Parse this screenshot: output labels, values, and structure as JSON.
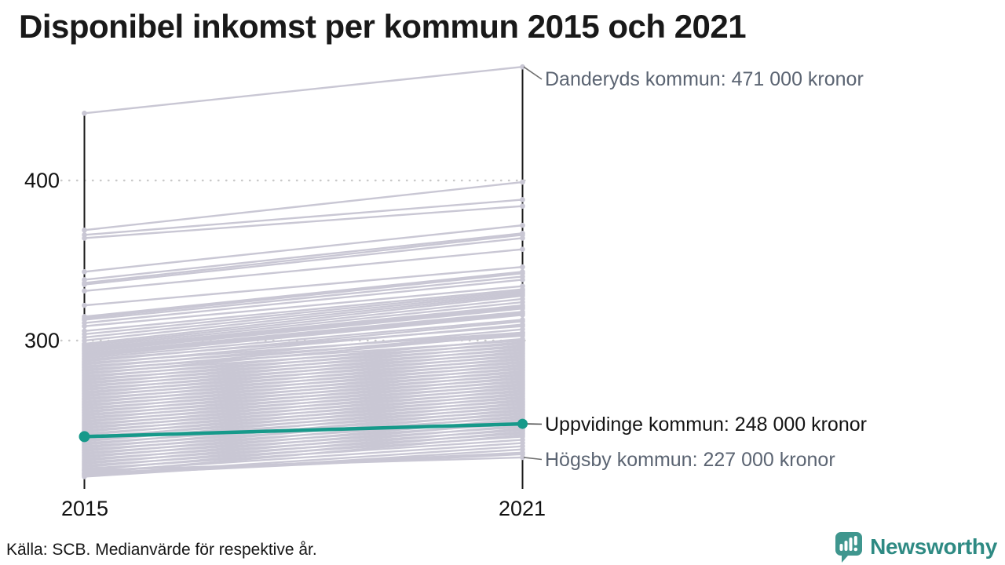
{
  "title": "Disponibel inkomst per kommun 2015 och 2021",
  "source": "Källa: SCB. Medianvärde för respektive år.",
  "brand": {
    "name": "Newsworthy",
    "icon": "newsworthy-speech-bubble-bar-chart-icon",
    "text_color": "#2e8a83",
    "icon_color": "#3f968e"
  },
  "colors": {
    "highlight": "#16998a",
    "background_line": "#c9c7d4",
    "axis": "#1a1a1a",
    "grid": "#c9c9c9",
    "annotation_gray": "#5b6472",
    "annotation_dark": "#141414"
  },
  "chart_data": {
    "type": "line",
    "subtype": "slopegraph",
    "title": "Disponibel inkomst per kommun 2015 och 2021",
    "x": [
      2015,
      2021
    ],
    "x_labels": [
      "2015",
      "2021"
    ],
    "y_ticks": [
      300,
      400
    ],
    "ylim": [
      210,
      480
    ],
    "unit": "tusen kronor",
    "grid": "dotted horizontal at y ticks",
    "annotations": [
      {
        "text": "Danderyds kommun: 471 000 kronor",
        "value_2021": 471,
        "style": "gray"
      },
      {
        "text": "Uppvidinge kommun: 248 000 kronor",
        "value_2021": 248,
        "style": "dark"
      },
      {
        "text": "Högsby kommun: 227 000 kronor",
        "value_2021": 227,
        "style": "gray"
      }
    ],
    "series": [
      {
        "name": "Danderyds kommun",
        "values": [
          442,
          471
        ],
        "highlight": false
      },
      {
        "name": "Uppvidinge kommun",
        "values": [
          240,
          248
        ],
        "highlight": true
      },
      {
        "name": "Högsby kommun",
        "values": [
          219,
          227
        ],
        "highlight": false
      }
    ],
    "background_lines": [
      [
        369,
        399
      ],
      [
        366,
        388
      ],
      [
        364,
        384
      ],
      [
        343,
        372
      ],
      [
        338,
        367
      ],
      [
        336,
        366
      ],
      [
        335,
        364
      ],
      [
        331,
        357
      ],
      [
        322,
        346
      ],
      [
        315,
        343
      ],
      [
        314,
        342
      ],
      [
        313,
        340
      ],
      [
        311,
        338
      ],
      [
        309,
        334
      ],
      [
        306,
        332
      ],
      [
        304,
        331
      ],
      [
        302,
        330
      ],
      [
        300,
        329
      ],
      [
        298,
        328
      ],
      [
        297,
        326
      ],
      [
        296,
        324
      ],
      [
        295,
        322
      ],
      [
        294,
        321
      ],
      [
        293,
        320
      ],
      [
        292,
        318
      ],
      [
        291,
        317
      ],
      [
        290,
        316
      ],
      [
        289,
        313
      ],
      [
        288,
        309
      ],
      [
        287,
        312
      ],
      [
        286,
        305
      ],
      [
        285,
        310
      ],
      [
        284,
        303
      ],
      [
        283,
        307
      ],
      [
        282,
        300
      ],
      [
        281,
        305
      ],
      [
        280,
        298
      ],
      [
        279,
        304
      ],
      [
        278,
        296
      ],
      [
        277,
        301
      ],
      [
        276,
        294
      ],
      [
        275,
        299
      ],
      [
        274,
        292
      ],
      [
        273,
        297
      ],
      [
        272,
        290
      ],
      [
        271,
        295
      ],
      [
        270,
        288
      ],
      [
        269,
        293
      ],
      [
        268,
        286
      ],
      [
        267,
        291
      ],
      [
        266,
        284
      ],
      [
        265,
        289
      ],
      [
        264,
        282
      ],
      [
        263,
        287
      ],
      [
        262,
        280
      ],
      [
        261,
        285
      ],
      [
        260,
        278
      ],
      [
        259,
        283
      ],
      [
        258,
        276
      ],
      [
        257,
        281
      ],
      [
        256,
        274
      ],
      [
        255,
        279
      ],
      [
        254,
        272
      ],
      [
        253,
        277
      ],
      [
        252,
        270
      ],
      [
        251,
        275
      ],
      [
        250,
        268
      ],
      [
        249,
        273
      ],
      [
        248,
        266
      ],
      [
        247,
        271
      ],
      [
        246,
        264
      ],
      [
        245,
        269
      ],
      [
        244,
        262
      ],
      [
        243,
        267
      ],
      [
        242,
        260
      ],
      [
        241,
        265
      ],
      [
        240,
        258
      ],
      [
        239,
        263
      ],
      [
        238,
        256
      ],
      [
        237,
        261
      ],
      [
        236,
        254
      ],
      [
        235,
        259
      ],
      [
        234,
        252
      ],
      [
        233,
        257
      ],
      [
        232,
        250
      ],
      [
        231,
        255
      ],
      [
        230,
        248
      ],
      [
        229,
        253
      ],
      [
        228,
        246
      ],
      [
        227,
        251
      ],
      [
        226,
        244
      ],
      [
        225,
        249
      ],
      [
        224,
        242
      ],
      [
        223,
        247
      ],
      [
        222,
        240
      ],
      [
        221,
        245
      ],
      [
        220,
        238
      ],
      [
        219,
        243
      ],
      [
        218,
        236
      ],
      [
        217,
        241
      ],
      [
        216,
        234
      ],
      [
        215,
        232
      ],
      [
        217,
        230
      ],
      [
        216,
        229
      ]
    ]
  }
}
